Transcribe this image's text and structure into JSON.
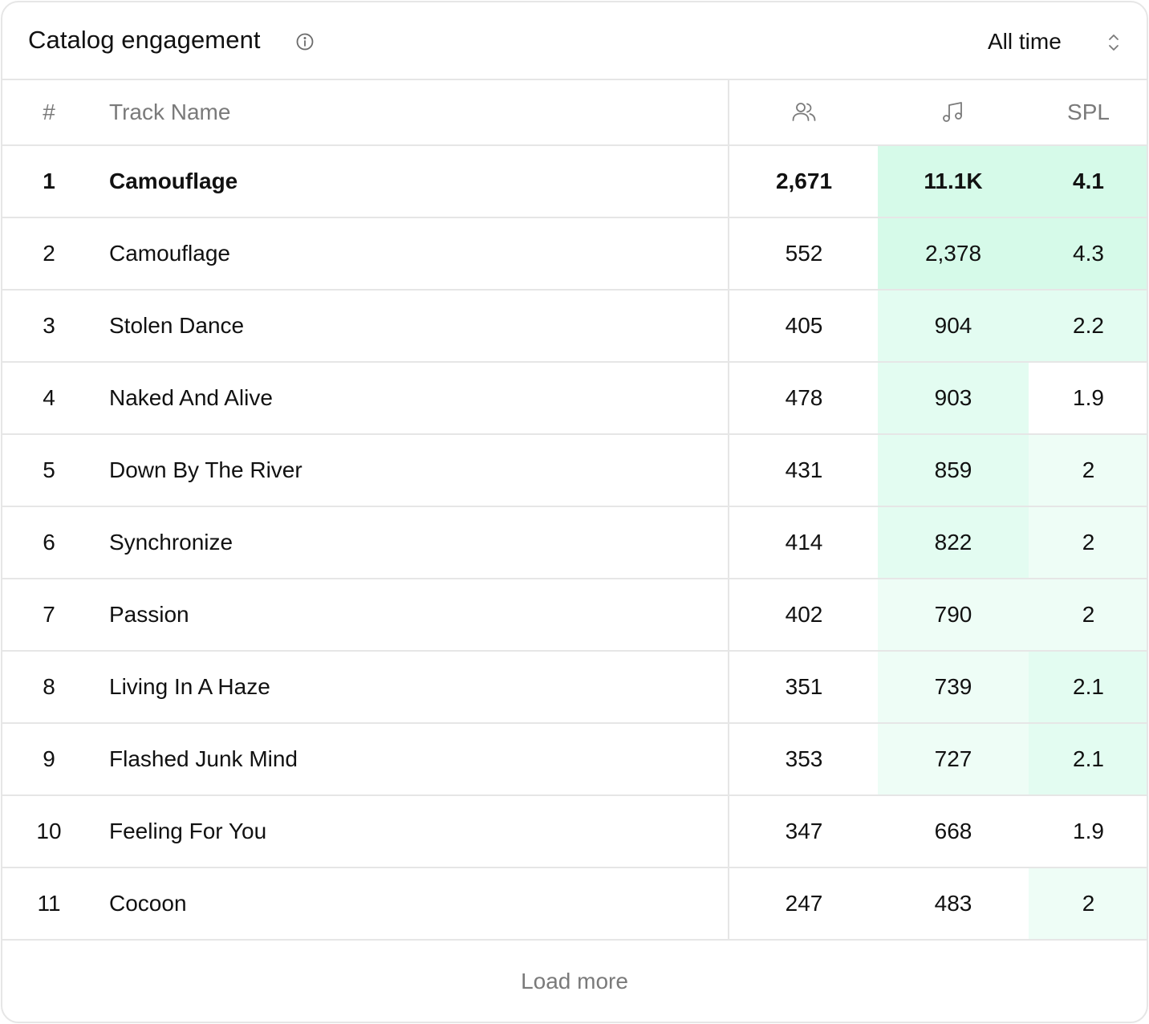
{
  "header": {
    "title": "Catalog engagement",
    "info_icon": "info-icon",
    "range_value": "All time",
    "range_icon": "chevron-up-down-icon"
  },
  "table": {
    "columns": {
      "rank": "#",
      "name": "Track Name",
      "listeners_icon": "users-icon",
      "streams_icon": "music-note-icon",
      "spl": "SPL"
    },
    "heat_colors": {
      "strong": "#d6fae9",
      "medium": "#e3fcf1",
      "light": "#eefdf6",
      "none": "#ffffff"
    },
    "rows": [
      {
        "rank": "1",
        "name": "Camouflage",
        "listeners": "2,671",
        "streams": "11.1K",
        "spl": "4.1",
        "streams_heat": "strong",
        "spl_heat": "strong",
        "bold": true
      },
      {
        "rank": "2",
        "name": "Camouflage",
        "listeners": "552",
        "streams": "2,378",
        "spl": "4.3",
        "streams_heat": "strong",
        "spl_heat": "strong",
        "bold": false
      },
      {
        "rank": "3",
        "name": "Stolen Dance",
        "listeners": "405",
        "streams": "904",
        "spl": "2.2",
        "streams_heat": "medium",
        "spl_heat": "medium",
        "bold": false
      },
      {
        "rank": "4",
        "name": "Naked And Alive",
        "listeners": "478",
        "streams": "903",
        "spl": "1.9",
        "streams_heat": "medium",
        "spl_heat": "none",
        "bold": false
      },
      {
        "rank": "5",
        "name": "Down By The River",
        "listeners": "431",
        "streams": "859",
        "spl": "2",
        "streams_heat": "medium",
        "spl_heat": "light",
        "bold": false
      },
      {
        "rank": "6",
        "name": "Synchronize",
        "listeners": "414",
        "streams": "822",
        "spl": "2",
        "streams_heat": "medium",
        "spl_heat": "light",
        "bold": false
      },
      {
        "rank": "7",
        "name": "Passion",
        "listeners": "402",
        "streams": "790",
        "spl": "2",
        "streams_heat": "light",
        "spl_heat": "light",
        "bold": false
      },
      {
        "rank": "8",
        "name": "Living In A Haze",
        "listeners": "351",
        "streams": "739",
        "spl": "2.1",
        "streams_heat": "light",
        "spl_heat": "medium",
        "bold": false
      },
      {
        "rank": "9",
        "name": "Flashed Junk Mind",
        "listeners": "353",
        "streams": "727",
        "spl": "2.1",
        "streams_heat": "light",
        "spl_heat": "medium",
        "bold": false
      },
      {
        "rank": "10",
        "name": "Feeling For You",
        "listeners": "347",
        "streams": "668",
        "spl": "1.9",
        "streams_heat": "none",
        "spl_heat": "none",
        "bold": false
      },
      {
        "rank": "11",
        "name": "Cocoon",
        "listeners": "247",
        "streams": "483",
        "spl": "2",
        "streams_heat": "none",
        "spl_heat": "light",
        "bold": false
      }
    ]
  },
  "footer": {
    "load_more_label": "Load more"
  }
}
